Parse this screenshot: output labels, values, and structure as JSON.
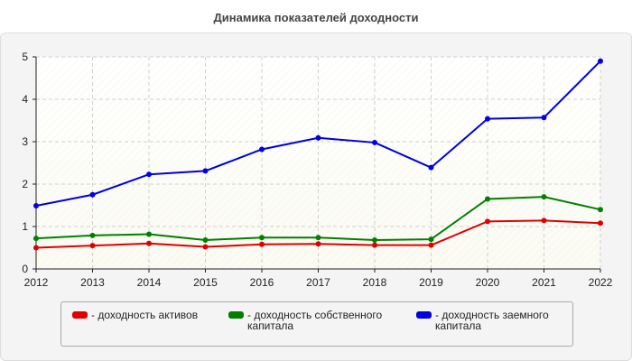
{
  "chart_data": {
    "type": "line",
    "title": "Динамика показателей доходности",
    "xlabel": "",
    "ylabel": "",
    "categories": [
      "2012",
      "2013",
      "2014",
      "2015",
      "2016",
      "2017",
      "2018",
      "2019",
      "2020",
      "2021",
      "2022"
    ],
    "ylim": [
      0,
      5
    ],
    "yticks": [
      0,
      1,
      2,
      3,
      4,
      5
    ],
    "grid": true,
    "legend_position": "bottom",
    "series": [
      {
        "name": "- доходность активов",
        "color": "#e00000",
        "values": [
          0.5,
          0.55,
          0.6,
          0.52,
          0.58,
          0.59,
          0.56,
          0.56,
          1.12,
          1.14,
          1.08
        ]
      },
      {
        "name": "- доходность собственного капитала",
        "color": "#008000",
        "values": [
          0.72,
          0.79,
          0.82,
          0.68,
          0.74,
          0.74,
          0.68,
          0.7,
          1.65,
          1.7,
          1.4
        ]
      },
      {
        "name": "- доходность заемного капитала",
        "color": "#0000e0",
        "values": [
          1.49,
          1.75,
          2.23,
          2.31,
          2.82,
          3.09,
          2.98,
          2.39,
          3.54,
          3.57,
          4.9
        ]
      }
    ]
  }
}
